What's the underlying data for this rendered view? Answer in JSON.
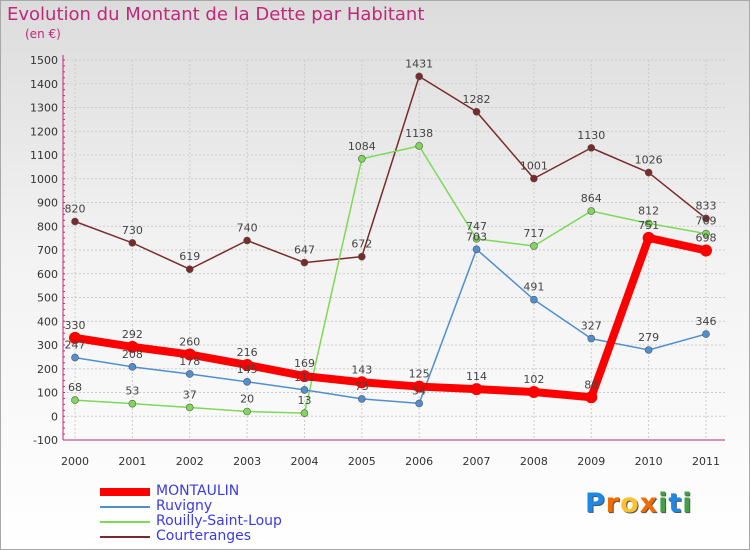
{
  "chart_data": {
    "type": "line",
    "title": "Evolution du Montant de la Dette par Habitant",
    "subtitle": "(en €)",
    "xlabel": "",
    "ylabel": "",
    "categories": [
      "2000",
      "2001",
      "2002",
      "2003",
      "2004",
      "2005",
      "2006",
      "2007",
      "2008",
      "2009",
      "2010",
      "2011"
    ],
    "ylim": [
      -100,
      1500
    ],
    "yticks": [
      -100,
      0,
      100,
      200,
      300,
      400,
      500,
      600,
      700,
      800,
      900,
      1000,
      1100,
      1200,
      1300,
      1400,
      1500
    ],
    "grid": true,
    "legend_position": "bottom-left",
    "series": [
      {
        "name": "MONTAULIN",
        "color": "#ff0000",
        "values": [
          330,
          292,
          260,
          216,
          169,
          143,
          125,
          114,
          102,
          80,
          751,
          698
        ]
      },
      {
        "name": "Ruvigny",
        "color": "#4f8fd0",
        "values": [
          247,
          208,
          178,
          145,
          111,
          73,
          54,
          703,
          491,
          327,
          279,
          346
        ]
      },
      {
        "name": "Rouilly-Saint-Loup",
        "color": "#7ed957",
        "values": [
          68,
          53,
          37,
          20,
          13,
          1084,
          1138,
          747,
          717,
          864,
          812,
          769
        ]
      },
      {
        "name": "Courteranges",
        "color": "#7a2a2a",
        "values": [
          820,
          730,
          619,
          740,
          647,
          672,
          1431,
          1282,
          1001,
          1130,
          1026,
          833
        ]
      }
    ]
  },
  "logo": {
    "letters": [
      "P",
      "r",
      "o",
      "x",
      "i",
      "t",
      "i"
    ],
    "colors": [
      "#1e88e5",
      "#ef6c00",
      "#fbc02d",
      "#ef6c00",
      "#43a047",
      "#1e88e5",
      "#43a047"
    ]
  }
}
